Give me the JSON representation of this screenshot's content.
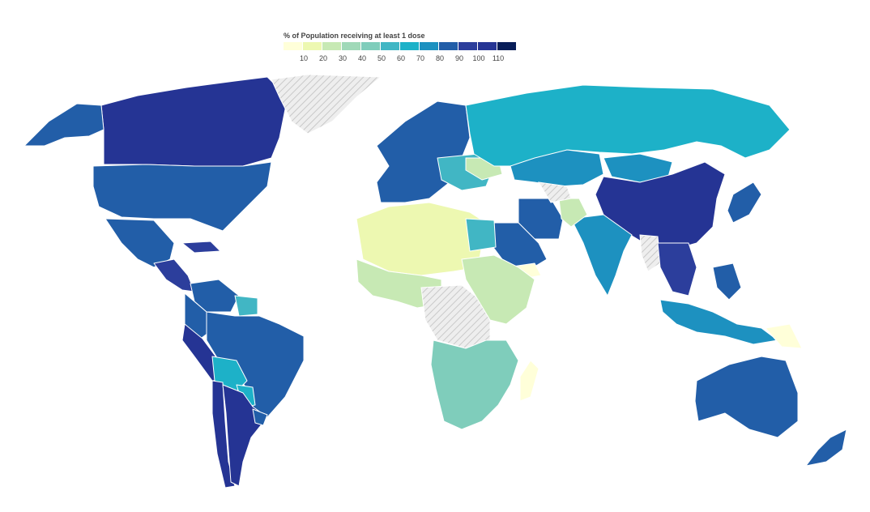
{
  "legend": {
    "title": "% of Population receiving at least 1 dose",
    "ticks": [
      "10",
      "20",
      "30",
      "40",
      "50",
      "60",
      "70",
      "80",
      "90",
      "100",
      "110"
    ],
    "colors": [
      "#ffffd9",
      "#edf8b1",
      "#c7e9b4",
      "#a0d9b8",
      "#7fcdbb",
      "#41b6c4",
      "#1db1c8",
      "#1d91c0",
      "#225ea8",
      "#2c3e9c",
      "#253494",
      "#081d58"
    ]
  },
  "map": {
    "nodata_pattern": "diagonal-hatch",
    "regions": [
      {
        "name": "Canada",
        "level": 10
      },
      {
        "name": "Alaska",
        "level": 8
      },
      {
        "name": "Greenland",
        "level": -1
      },
      {
        "name": "United States",
        "level": 8
      },
      {
        "name": "Mexico",
        "level": 8
      },
      {
        "name": "Central America",
        "level": 9
      },
      {
        "name": "Caribbean",
        "level": 9
      },
      {
        "name": "Venezuela",
        "level": 8
      },
      {
        "name": "Guianas",
        "level": 5
      },
      {
        "name": "Colombia",
        "level": 8
      },
      {
        "name": "Peru",
        "level": 10
      },
      {
        "name": "Brazil",
        "level": 8
      },
      {
        "name": "Bolivia",
        "level": 6
      },
      {
        "name": "Paraguay",
        "level": 6
      },
      {
        "name": "Chile",
        "level": 10
      },
      {
        "name": "Argentina",
        "level": 10
      },
      {
        "name": "Uruguay",
        "level": 8
      },
      {
        "name": "Western Europe",
        "level": 8
      },
      {
        "name": "Eastern Europe",
        "level": 5
      },
      {
        "name": "Ukraine",
        "level": 2
      },
      {
        "name": "Russia",
        "level": 6
      },
      {
        "name": "Kazakhstan",
        "level": 7
      },
      {
        "name": "Mongolia",
        "level": 7
      },
      {
        "name": "China",
        "level": 10
      },
      {
        "name": "Japan",
        "level": 8
      },
      {
        "name": "India",
        "level": 7
      },
      {
        "name": "Iran",
        "level": 8
      },
      {
        "name": "Afghanistan",
        "level": 2
      },
      {
        "name": "Saudi Arabia",
        "level": 8
      },
      {
        "name": "Yemen",
        "level": 0
      },
      {
        "name": "Turkmenistan",
        "level": -1
      },
      {
        "name": "Myanmar",
        "level": -1
      },
      {
        "name": "Southeast Asia",
        "level": 9
      },
      {
        "name": "Indonesia",
        "level": 7
      },
      {
        "name": "Philippines",
        "level": 8
      },
      {
        "name": "Papua New Guinea",
        "level": 0
      },
      {
        "name": "Australia",
        "level": 8
      },
      {
        "name": "New Zealand",
        "level": 8
      },
      {
        "name": "North Africa",
        "level": 1
      },
      {
        "name": "Egypt",
        "level": 5
      },
      {
        "name": "West Africa",
        "level": 2
      },
      {
        "name": "Central Africa",
        "level": -1
      },
      {
        "name": "East Africa",
        "level": 2
      },
      {
        "name": "Southern Africa",
        "level": 4
      },
      {
        "name": "Madagascar",
        "level": 0
      }
    ]
  }
}
